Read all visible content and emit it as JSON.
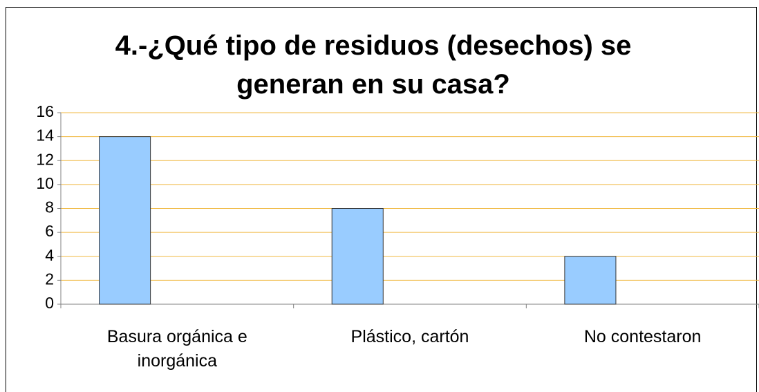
{
  "chart_data": {
    "type": "bar",
    "title": "4.-¿Qué tipo de residuos (desechos) se generan en su casa?",
    "categories": [
      "Basura orgánica e inorgánica",
      "Plástico, cartón",
      "No contestaron"
    ],
    "values": [
      14,
      8,
      4
    ],
    "color": "#99ccff",
    "ylim": [
      0,
      16
    ],
    "yticks": [
      0,
      2,
      4,
      6,
      8,
      10,
      12,
      14,
      16
    ],
    "grid": true
  }
}
